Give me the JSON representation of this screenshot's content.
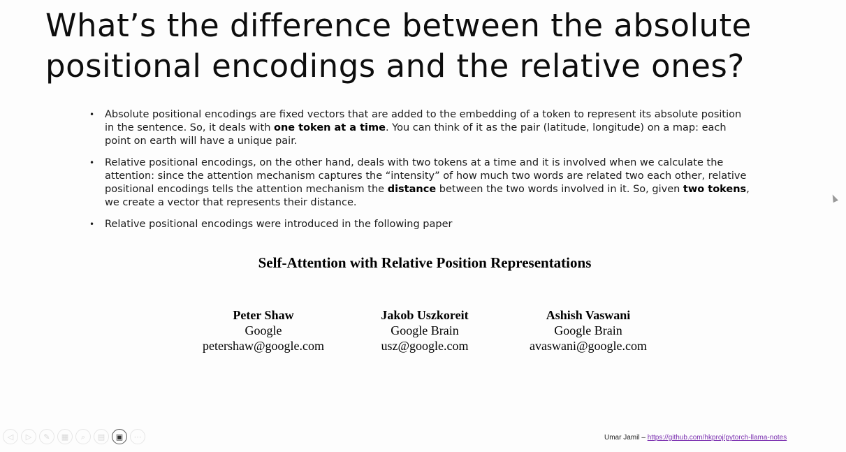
{
  "slide": {
    "title": "What’s the difference between the absolute positional encodings and the relative ones?",
    "bullets": [
      {
        "parts": [
          {
            "text": "Absolute positional encodings are fixed vectors that are added to the embedding of a token to represent its absolute position in the sentence. So, it deals with ",
            "bold": false
          },
          {
            "text": "one token at a time",
            "bold": true
          },
          {
            "text": ". You can think of it as the pair (latitude, longitude) on a map: each point on earth will have a unique pair.",
            "bold": false
          }
        ]
      },
      {
        "parts": [
          {
            "text": "Relative positional encodings, on the other hand, deals with two tokens at a time and it is involved when we calculate the attention: since the attention mechanism captures the “intensity” of how much two words are related two each other, relative positional encodings tells the attention mechanism the ",
            "bold": false
          },
          {
            "text": "distance",
            "bold": true
          },
          {
            "text": " between the two words involved in it. So, given ",
            "bold": false
          },
          {
            "text": "two tokens",
            "bold": true
          },
          {
            "text": ", we create a vector that represents their distance.",
            "bold": false
          }
        ]
      },
      {
        "parts": [
          {
            "text": "Relative positional encodings were introduced in the following paper",
            "bold": false
          }
        ]
      }
    ],
    "bullet_glyph": "•",
    "paper": {
      "title": "Self-Attention with Relative Position Representations",
      "authors": [
        {
          "name": "Peter Shaw",
          "affiliation": "Google",
          "email": "petershaw@google.com"
        },
        {
          "name": "Jakob Uszkoreit",
          "affiliation": "Google Brain",
          "email": "usz@google.com"
        },
        {
          "name": "Ashish Vaswani",
          "affiliation": "Google Brain",
          "email": "avaswani@google.com"
        }
      ]
    },
    "footer": {
      "author": "Umar Jamil – ",
      "link_text": "https://github.com/hkproj/pytorch-llama-notes",
      "link_color": "#7b2fb0"
    }
  },
  "toolbar": {
    "buttons": [
      {
        "name": "previous-slide-button",
        "icon": "◁",
        "active": false
      },
      {
        "name": "next-slide-button",
        "icon": "▷",
        "active": false
      },
      {
        "name": "pen-tool-button",
        "icon": "✎",
        "active": false
      },
      {
        "name": "slides-grid-button",
        "icon": "▦",
        "active": false
      },
      {
        "name": "zoom-button",
        "icon": "⌕",
        "active": false
      },
      {
        "name": "subtitles-button",
        "icon": "▤",
        "active": false
      },
      {
        "name": "camera-button",
        "icon": "▣",
        "active": true
      },
      {
        "name": "more-options-button",
        "icon": "⋯",
        "active": false
      }
    ]
  }
}
